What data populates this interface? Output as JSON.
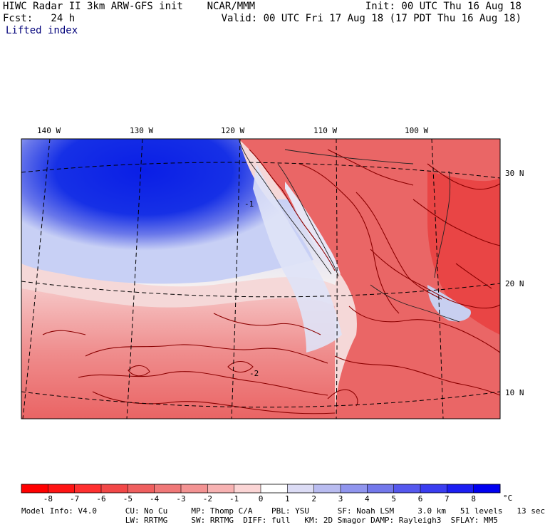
{
  "header": {
    "title_left": "HIWC Radar II 3km ARW-GFS init    NCAR/MMM",
    "fcst": "Fcst:   24 h",
    "field": "Lifted index",
    "init": "Init: 00 UTC Thu 16 Aug 18",
    "valid": "Valid: 00 UTC Fri 17 Aug 18 (17 PDT Thu 16 Aug 18)"
  },
  "map": {
    "longitude_labels": [
      "140 W",
      "130 W",
      "120 W",
      "110 W",
      "100 W"
    ],
    "latitude_labels": [
      "30 N",
      "20 N",
      "10 N"
    ],
    "contour_labels": [
      "-1",
      "-2"
    ],
    "colors": {
      "ocean_stable_dark": "#0a1ee6",
      "ocean_stable_light": "#c8d0f5",
      "neutral": "#f5f0f0",
      "unstable_light": "#f5a8a8",
      "unstable": "#ea5a5a",
      "unstable_strong": "#e33a3a",
      "contour": "#8b0000"
    }
  },
  "colorbar": {
    "ticks": [
      "-8",
      "-7",
      "-6",
      "-5",
      "-4",
      "-3",
      "-2",
      "-1",
      "0",
      "1",
      "2",
      "3",
      "4",
      "5",
      "6",
      "7",
      "8"
    ],
    "unit": "°C",
    "bins": [
      "#ff0000",
      "#ff1414",
      "#ff3030",
      "#f24848",
      "#ef5f5f",
      "#f07878",
      "#f39393",
      "#f7b2b2",
      "#fbd5d5",
      "#ffffff",
      "#dcdcf5",
      "#b9bcf0",
      "#9095ee",
      "#7378eb",
      "#5558ee",
      "#3a3df0",
      "#1c1ef2",
      "#0000f0"
    ]
  },
  "model_info": {
    "line1": "Model Info: V4.0      CU: No Cu     MP: Thomp C/A    PBL: YSU      SF: Noah LSM     3.0 km   51 levels   13 sec",
    "line2": "                      LW: RRTMG     SW: RRTMG  DIFF: full   KM: 2D Smagor DAMP: Rayleigh3  SFLAY: MM5"
  }
}
